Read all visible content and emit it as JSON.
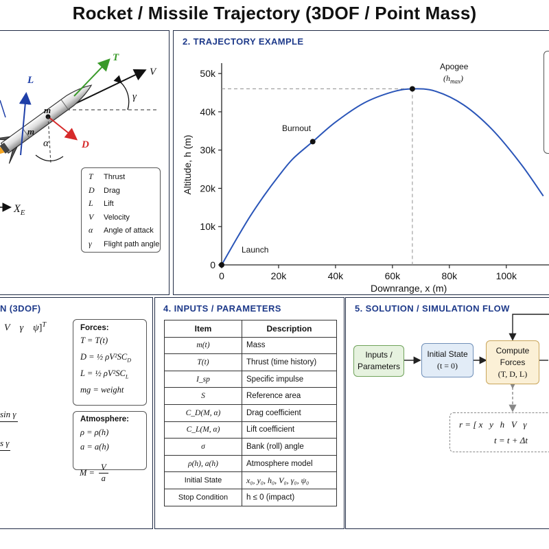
{
  "page_title": "Rocket / Missile Trajectory (3DOF / Point Mass)",
  "panel1": {
    "labels": {
      "thrust": "T",
      "velocity": "V",
      "lift": "L",
      "drag": "D",
      "gamma": "γ",
      "alpha": "α",
      "mass1": "m",
      "mass2": "m",
      "axis": "X",
      "axis_sub": "E"
    },
    "legend": [
      {
        "sym": "T",
        "text": "Thrust"
      },
      {
        "sym": "D",
        "text": "Drag"
      },
      {
        "sym": "L",
        "text": "Lift"
      },
      {
        "sym": "V",
        "text": "Velocity"
      },
      {
        "sym": "α",
        "text": "Angle of attack"
      },
      {
        "sym": "γ",
        "text": "Flight path angle"
      }
    ],
    "colors": {
      "thrust": "#3a9a2a",
      "lift": "#1e3fa8",
      "drag": "#d62a2a"
    }
  },
  "panel2": {
    "title": "2. TRAJECTORY EXAMPLE",
    "ylabel": "Altitude, h (m)",
    "xlabel": "Downrange, x (m)",
    "annotations": {
      "apogee": "Apogee",
      "apogee_sub": "(h",
      "apogee_sub2": "max",
      "apogee_close": ")",
      "burnout": "Burnout",
      "launch": "Launch"
    }
  },
  "chart_data": {
    "type": "line",
    "xlabel": "Downrange, x (m)",
    "ylabel": "Altitude, h (m)",
    "xlim": [
      0,
      115000
    ],
    "ylim": [
      0,
      52000
    ],
    "x_ticks": [
      "0",
      "20k",
      "40k",
      "60k",
      "80k",
      "100k"
    ],
    "x_tick_values": [
      0,
      20000,
      40000,
      60000,
      80000,
      100000
    ],
    "y_ticks": [
      "0",
      "10k",
      "20k",
      "30k",
      "40k",
      "50k"
    ],
    "y_tick_values": [
      0,
      10000,
      20000,
      30000,
      40000,
      50000
    ],
    "series": [
      {
        "x": [
          0,
          5000,
          10000,
          15000,
          20000,
          25000,
          32000,
          40000,
          50000,
          60000,
          67000,
          75000,
          85000,
          95000,
          105000,
          113000
        ],
        "y": [
          0,
          6500,
          12700,
          18200,
          23200,
          27700,
          32200,
          37300,
          42300,
          45200,
          46000,
          45400,
          41800,
          35400,
          26500,
          18000
        ]
      }
    ],
    "points": [
      {
        "label": "Launch",
        "x": 0,
        "y": 0
      },
      {
        "label": "Burnout",
        "x": 32000,
        "y": 32200
      },
      {
        "label": "Apogee",
        "x": 67000,
        "y": 46000
      }
    ],
    "color": "#2a55b8"
  },
  "panel3": {
    "title": "N (3DOF)",
    "state_row": {
      "v": "V",
      "g": "γ",
      "p": "ψ",
      "T": "T"
    },
    "partials": {
      "sin": "sin γ",
      "cos": "s γ"
    },
    "forces_title": "Forces:",
    "forces": [
      "T = T(t)",
      "D = ½ ρV²SC",
      "L = ½ ρV²SC",
      "mg = weight"
    ],
    "forces_subs": [
      "",
      "D",
      "L",
      ""
    ],
    "atm_title": "Atmosphere:",
    "atm": [
      "ρ = ρ(h)",
      "a = a(h)"
    ],
    "mach_lhs": "M =",
    "mach_num": "V",
    "mach_den": "a"
  },
  "panel4": {
    "title": "4. INPUTS / PARAMETERS",
    "head_item": "Item",
    "head_desc": "Description",
    "rows": [
      {
        "item": "m(t)",
        "desc": "Mass",
        "plain": false
      },
      {
        "item": "T(t)",
        "desc": "Thrust (time history)",
        "plain": false
      },
      {
        "item": "I_sp",
        "desc": "Specific impulse",
        "plain": false
      },
      {
        "item": "S",
        "desc": "Reference area",
        "plain": false
      },
      {
        "item": "C_D(M, α)",
        "desc": "Drag coefficient",
        "plain": false
      },
      {
        "item": "C_L(M, α)",
        "desc": "Lift coefficient",
        "plain": false
      },
      {
        "item": "σ",
        "desc": "Bank (roll) angle",
        "plain": false
      },
      {
        "item": "ρ(h), a(h)",
        "desc": "Atmosphere model",
        "plain": false
      },
      {
        "item": "Initial State",
        "desc": "x₀, y₀, h₀, V₀, γ₀, ψ₀",
        "plain": true
      },
      {
        "item": "Stop Condition",
        "desc": "h ≤ 0 (impact)",
        "plain": true
      }
    ]
  },
  "panel5": {
    "title": "5. SOLUTION / SIMULATION FLOW",
    "box1": [
      "Inputs /",
      "Parameters"
    ],
    "box2": [
      "Initial State",
      "(t = 0)"
    ],
    "box3": [
      "Compute",
      "Forces",
      "(T, D, L)"
    ],
    "state_eq": "r = [ x   y   h   V   γ",
    "time_eq": "t = t + Δt",
    "colors": {
      "green": "#e6f2df",
      "blue": "#e2ecf7",
      "yellow": "#fbf0d6"
    }
  }
}
